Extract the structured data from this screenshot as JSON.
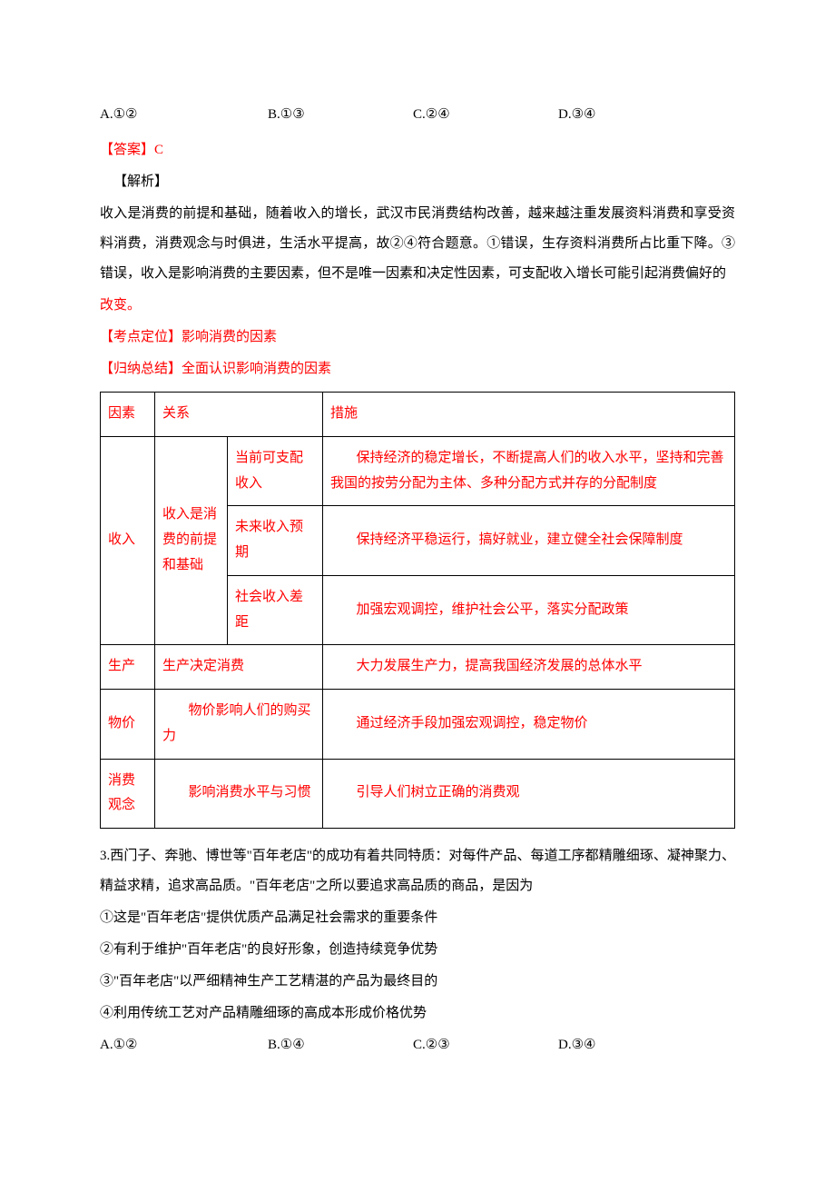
{
  "q1": {
    "optA": "A.①②",
    "optB": "B.①③",
    "optC": "C.②④",
    "optD": "D.③④",
    "answerLabel": "【答案】C",
    "analysisLabel": "【解析】",
    "analysisBody1": "收入是消费的前提和基础，随着收入的增长，武汉市民消费结构改善，越来越注重发展资料消费和享受资料消费，消费观念与时俱进，生活水平提高，故②④符合题意。①错误，生存资料消费所占比重下降。③错误，收入是影响消费的主要因素，但不是唯一因素和决定性因素，可支配收入增长可能引起消费偏好的",
    "analysisBody2": "改变。",
    "kaodian": "【考点定位】影响消费的因素",
    "guina": "【归纳总结】全面认识影响消费的因素"
  },
  "table": {
    "header": {
      "c1": "因素",
      "c2": "关系",
      "c3": "措施"
    },
    "income": {
      "label": "收入",
      "relation": "收入是消费的前提和基础",
      "r1": {
        "sub": "当前可支配收入",
        "measure": "保持经济的稳定增长，不断提高人们的收入水平，坚持和完善我国的按劳分配为主体、多种分配方式并存的分配制度"
      },
      "r2": {
        "sub": "未来收入预期",
        "measure": "保持经济平稳运行，搞好就业，建立健全社会保障制度"
      },
      "r3": {
        "sub": "社会收入差距",
        "measure": "加强宏观调控，维护社会公平，落实分配政策"
      }
    },
    "production": {
      "label": "生产",
      "relation": "生产决定消费",
      "measure": "大力发展生产力，提高我国经济发展的总体水平"
    },
    "price": {
      "label": "物价",
      "relation": "物价影响人们的购买力",
      "measure": "通过经济手段加强宏观调控，稳定物价"
    },
    "concept": {
      "label": "消费观念",
      "relation": "影响消费水平与习惯",
      "measure": "引导人们树立正确的消费观"
    }
  },
  "q3": {
    "stem1": "3.西门子、奔驰、博世等\"百年老店\"的成功有着共同特质：对每件产品、每道工序都精雕细琢、凝神聚力、精益求精，追求高品质。\"百年老店\"之所以要追求高品质的商品，是因为",
    "s1": "①这是\"百年老店\"提供优质产品满足社会需求的重要条件",
    "s2": "②有利于维护\"百年老店\"的良好形象，创造持续竞争优势",
    "s3": "③\"百年老店\"以严细精神生产工艺精湛的产品为最终目的",
    "s4": "④利用传统工艺对产品精雕细琢的高成本形成价格优势",
    "optA": "A.①②",
    "optB": "B.①④",
    "optC": "C.②③",
    "optD": "D.③④"
  }
}
